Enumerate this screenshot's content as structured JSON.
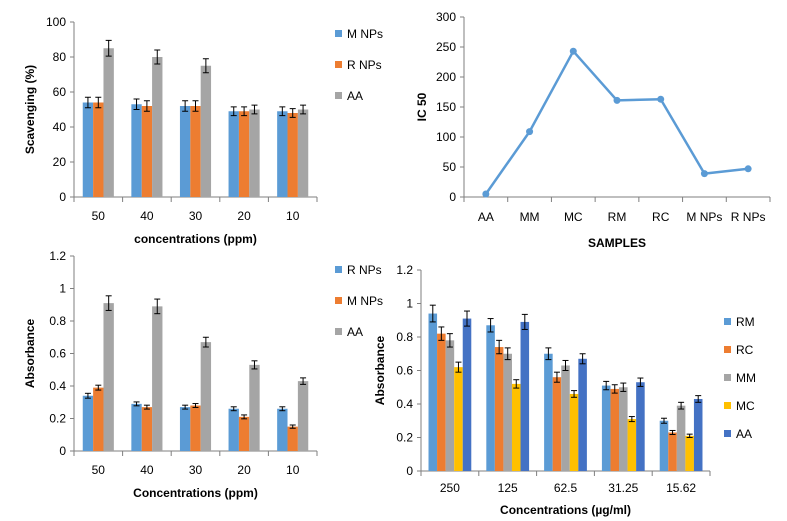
{
  "chart_data": [
    {
      "type": "bar",
      "title": "",
      "xlabel": "concentrations (ppm)",
      "ylabel": "Scavenging (%)",
      "ylim": [
        0,
        100
      ],
      "yticks": [
        "0",
        "20",
        "40",
        "60",
        "80",
        "100"
      ],
      "categories": [
        "50",
        "40",
        "30",
        "20",
        "10"
      ],
      "series": [
        {
          "name": "M NPs",
          "color": "#5b9bd5",
          "values": [
            54,
            53,
            52,
            49,
            49
          ],
          "errors": [
            3,
            3,
            3,
            2.5,
            2.5
          ]
        },
        {
          "name": "R NPs",
          "color": "#ed7d31",
          "values": [
            54,
            52,
            52,
            49,
            48
          ],
          "errors": [
            3,
            3,
            3,
            2.5,
            2.5
          ]
        },
        {
          "name": "AA",
          "color": "#a5a5a5",
          "values": [
            85,
            80,
            75,
            50,
            50
          ],
          "errors": [
            4.5,
            4,
            4,
            2.5,
            2.5
          ]
        }
      ],
      "legend_position": "right"
    },
    {
      "type": "line",
      "title": "",
      "xlabel": "SAMPLES",
      "ylabel": "IC 50",
      "ylim": [
        0,
        300
      ],
      "yticks": [
        "0",
        "50",
        "100",
        "150",
        "200",
        "250",
        "300"
      ],
      "categories": [
        "AA",
        "MM",
        "MC",
        "RM",
        "RC",
        "M NPs",
        "R NPs"
      ],
      "series": [
        {
          "name": "IC 50",
          "color": "#5b9bd5",
          "values": [
            5,
            109,
            243,
            161,
            163,
            39,
            47
          ]
        }
      ]
    },
    {
      "type": "bar",
      "title": "",
      "xlabel": "Concentrations (ppm)",
      "ylabel": "Absorbance",
      "ylim": [
        0,
        1.2
      ],
      "yticks": [
        "0",
        "0.2",
        "0.4",
        "0.6",
        "0.8",
        "1",
        "1.2"
      ],
      "categories": [
        "50",
        "40",
        "30",
        "20",
        "10"
      ],
      "series": [
        {
          "name": "R NPs",
          "color": "#5b9bd5",
          "values": [
            0.34,
            0.29,
            0.27,
            0.26,
            0.26
          ],
          "errors": [
            0.015,
            0.012,
            0.012,
            0.012,
            0.012
          ]
        },
        {
          "name": "M NPs",
          "color": "#ed7d31",
          "values": [
            0.39,
            0.27,
            0.28,
            0.21,
            0.15
          ],
          "errors": [
            0.015,
            0.012,
            0.012,
            0.012,
            0.01
          ]
        },
        {
          "name": "AA",
          "color": "#a5a5a5",
          "values": [
            0.91,
            0.89,
            0.67,
            0.53,
            0.43
          ],
          "errors": [
            0.045,
            0.045,
            0.03,
            0.025,
            0.02
          ]
        }
      ],
      "legend_position": "right"
    },
    {
      "type": "bar",
      "title": "",
      "xlabel": "Concentrations (µg/ml)",
      "ylabel": "Absorbance",
      "ylim": [
        0,
        1.2
      ],
      "yticks": [
        "0",
        "0.2",
        "0.4",
        "0.6",
        "0.8",
        "1",
        "1.2"
      ],
      "categories": [
        "250",
        "125",
        "62.5",
        "31.25",
        "15.62"
      ],
      "series": [
        {
          "name": "RM",
          "color": "#5b9bd5",
          "values": [
            0.94,
            0.87,
            0.7,
            0.51,
            0.3
          ],
          "errors": [
            0.05,
            0.04,
            0.035,
            0.025,
            0.015
          ]
        },
        {
          "name": "RC",
          "color": "#ed7d31",
          "values": [
            0.82,
            0.74,
            0.56,
            0.49,
            0.23
          ],
          "errors": [
            0.04,
            0.04,
            0.03,
            0.025,
            0.012
          ]
        },
        {
          "name": "MM",
          "color": "#a5a5a5",
          "values": [
            0.78,
            0.7,
            0.63,
            0.5,
            0.39
          ],
          "errors": [
            0.04,
            0.035,
            0.03,
            0.025,
            0.02
          ]
        },
        {
          "name": "MC",
          "color": "#ffc000",
          "values": [
            0.62,
            0.52,
            0.46,
            0.31,
            0.21
          ],
          "errors": [
            0.03,
            0.025,
            0.02,
            0.015,
            0.01
          ]
        },
        {
          "name": "AA",
          "color": "#4472c4",
          "values": [
            0.91,
            0.89,
            0.67,
            0.53,
            0.43
          ],
          "errors": [
            0.045,
            0.045,
            0.03,
            0.025,
            0.02
          ]
        }
      ],
      "legend_position": "right"
    }
  ]
}
